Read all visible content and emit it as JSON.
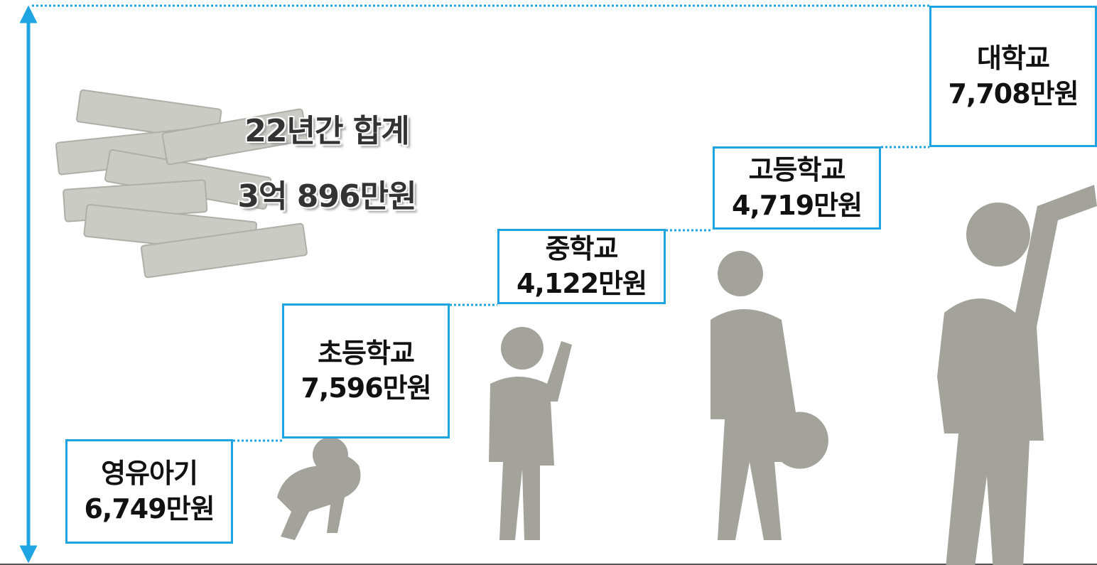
{
  "total": {
    "label": "22년간 합계",
    "amount": "3억 896만원"
  },
  "stages": [
    {
      "name": "영유아기",
      "amount": "6,749만원"
    },
    {
      "name": "초등학교",
      "amount": "7,596만원"
    },
    {
      "name": "중학교",
      "amount": "4,122만원"
    },
    {
      "name": "고등학교",
      "amount": "4,719만원"
    },
    {
      "name": "대학교",
      "amount": "7,708만원"
    }
  ]
}
